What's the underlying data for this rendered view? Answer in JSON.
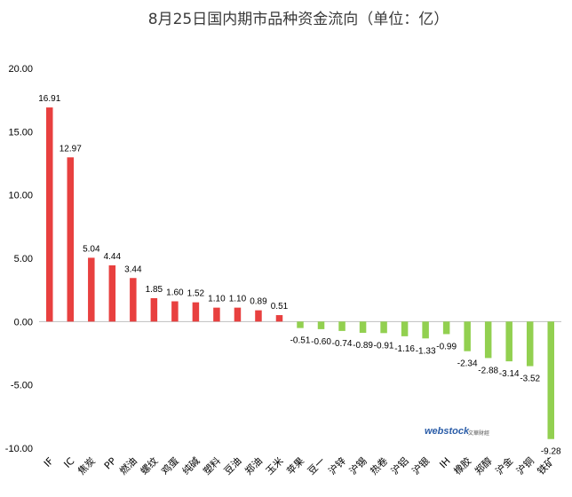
{
  "chart_data": {
    "type": "bar",
    "title": "8月25日国内期市品种资金流向（单位：亿）",
    "categories": [
      "IF",
      "IC",
      "焦炭",
      "PP",
      "燃油",
      "螺纹",
      "鸡蛋",
      "纯碱",
      "塑料",
      "豆油",
      "郑油",
      "玉米",
      "苹果",
      "豆一",
      "沪锌",
      "沪锡",
      "热卷",
      "沪铝",
      "沪银",
      "IH",
      "橡胶",
      "郑醇",
      "沪金",
      "沪铜",
      "铁矿"
    ],
    "values": [
      16.91,
      12.97,
      5.04,
      4.44,
      3.44,
      1.85,
      1.6,
      1.52,
      1.1,
      1.1,
      0.89,
      0.51,
      -0.51,
      -0.6,
      -0.74,
      -0.89,
      -0.91,
      -1.16,
      -1.33,
      -0.99,
      -2.34,
      -2.88,
      -3.14,
      -3.52,
      -9.28
    ],
    "value_labels": [
      "16.91",
      "12.97",
      "5.04",
      "4.44",
      "3.44",
      "1.85",
      "1.60",
      "1.52",
      "1.10",
      "1.10",
      "0.89",
      "0.51",
      "-0.51",
      "-0.60",
      "-0.74",
      "-0.89",
      "-0.91",
      "-1.16",
      "-1.33",
      "-0.99",
      "-2.34",
      "-2.88",
      "-3.14",
      "-3.52",
      "-9.28"
    ],
    "y_ticks": [
      "20.00",
      "15.00",
      "10.00",
      "5.00",
      "0.00",
      "-5.00",
      "-10.00"
    ],
    "ylim": [
      -10,
      20
    ],
    "grid": false,
    "colors": {
      "positive": "#e8403f",
      "negative": "#92d050",
      "axis": "#bfbfbf"
    }
  },
  "watermark": {
    "brand": "webstock",
    "sub": "文華財經"
  }
}
